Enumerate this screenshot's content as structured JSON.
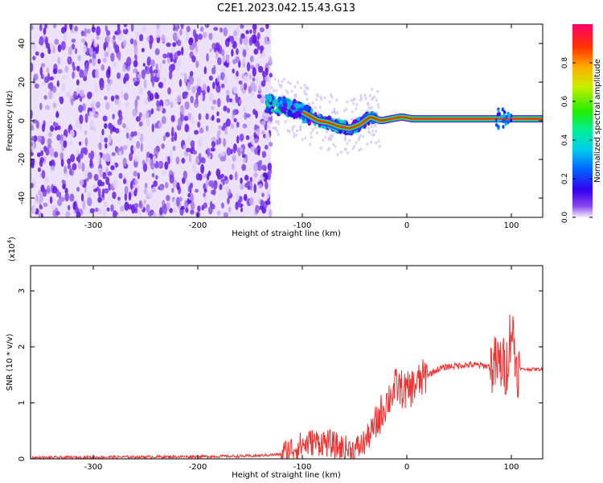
{
  "title": "C2E1.2023.042.15.43.G13",
  "colors": {
    "snr_line": "#ee3333",
    "frame": "#000000"
  },
  "chart_data": [
    {
      "type": "heatmap",
      "xlabel": "Height of straight line (km)",
      "ylabel": "Frequency (Hz)",
      "xlim": [
        -360,
        130
      ],
      "ylim": [
        -50,
        50
      ],
      "xticks": [
        -300,
        -200,
        -100,
        0,
        100
      ],
      "yticks": [
        -40,
        -20,
        0,
        20,
        40
      ],
      "colorbar": {
        "label": "Normalized spectral amplitude",
        "range": [
          0,
          1
        ],
        "ticks": [
          0.0,
          0.2,
          0.4,
          0.6,
          0.8
        ]
      },
      "noise_region": {
        "x_from": -360,
        "x_to": -130
      },
      "signal_track": {
        "x": [
          -135,
          -125,
          -115,
          -105,
          -95,
          -85,
          -75,
          -65,
          -55,
          -45,
          -35,
          -25,
          -15,
          -5,
          5,
          15,
          30,
          50,
          70,
          90,
          100,
          130
        ],
        "freq": [
          9,
          8,
          7,
          6,
          3,
          0,
          -1,
          -3,
          -4,
          -2,
          2,
          0,
          1,
          2,
          1,
          1,
          1,
          1,
          1,
          1,
          1,
          1
        ]
      }
    },
    {
      "type": "line",
      "xlabel": "Height of straight line (km)",
      "ylabel": "SNR (10 * v/v)",
      "y_multiplier": "(x10",
      "y_multiplier_exp": "4",
      "y_multiplier_close": ")",
      "xlim": [
        -360,
        130
      ],
      "ylim": [
        0,
        34500
      ],
      "xticks": [
        -300,
        -200,
        -100,
        0,
        100
      ],
      "yticks": [
        0,
        10000,
        20000,
        30000
      ],
      "ytick_labels": [
        "0",
        "1",
        "2",
        "3"
      ],
      "series": [
        {
          "x": [
            -360,
            -300,
            -200,
            -150,
            -120,
            -110,
            -100,
            -90,
            -80,
            -70,
            -60,
            -50,
            -40,
            -30,
            -20,
            -10,
            0,
            10,
            20,
            30,
            40,
            50,
            60,
            70,
            80,
            90,
            95,
            100,
            105,
            110,
            130
          ],
          "y": [
            200,
            300,
            400,
            500,
            800,
            1800,
            2500,
            3000,
            3000,
            2500,
            1800,
            1500,
            3000,
            6000,
            10000,
            13000,
            12000,
            13500,
            15000,
            16000,
            16500,
            16700,
            16800,
            16700,
            16500,
            17000,
            16000,
            24000,
            16500,
            16000,
            16000
          ]
        }
      ]
    }
  ]
}
